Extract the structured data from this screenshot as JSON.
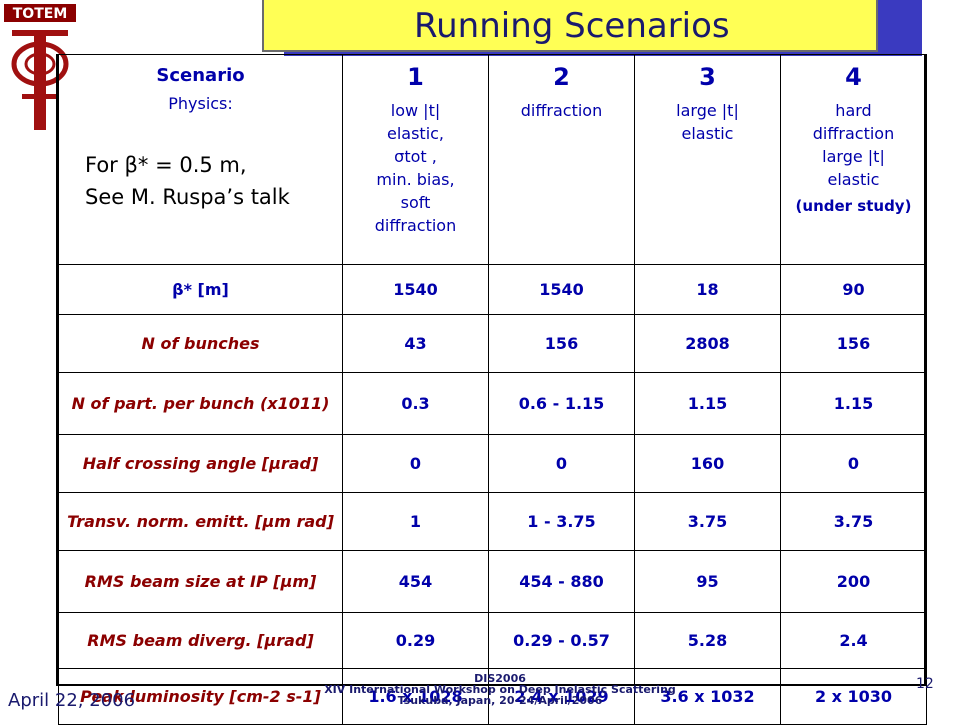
{
  "slide": {
    "title": "Running Scenarios",
    "logo_text": "TOTEM",
    "footer_date": "April 22, 2006",
    "footer_conf": [
      "DIS2006",
      "XIV International Workshop on Deep Inelastic Scattering",
      "Tsukuba, Japan, 20-24/April/2006"
    ],
    "page_number": "12"
  },
  "header": {
    "scenario_label": "Scenario",
    "physics_label": "Physics:",
    "note_line1": "For β* = 0.5 m,",
    "note_line2": "See M. Ruspa’s talk",
    "columns": [
      {
        "num": "1",
        "lines": [
          "low |t|",
          "elastic,",
          "σtot ,",
          "min. bias,",
          "soft",
          "diffraction"
        ],
        "note": ""
      },
      {
        "num": "2",
        "lines": [
          "diffraction"
        ],
        "note": ""
      },
      {
        "num": "3",
        "lines": [
          "large |t|",
          "elastic"
        ],
        "note": ""
      },
      {
        "num": "4",
        "lines": [
          "hard",
          "diffraction",
          "large |t|",
          "elastic"
        ],
        "note": "(under study)"
      }
    ]
  },
  "rows": [
    {
      "label": "β* [m]",
      "values": [
        "1540",
        "1540",
        "18",
        "90"
      ]
    },
    {
      "label": "N of bunches",
      "values": [
        "43",
        "156",
        "2808",
        "156"
      ]
    },
    {
      "label": "N of part. per bunch (x1011)",
      "values": [
        "0.3",
        "0.6 - 1.15",
        "1.15",
        "1.15"
      ]
    },
    {
      "label": "Half crossing angle [μrad]",
      "values": [
        "0",
        "0",
        "160",
        "0"
      ]
    },
    {
      "label": "Transv. norm. emitt. [μm rad]",
      "values": [
        "1",
        "1 - 3.75",
        "3.75",
        "3.75"
      ]
    },
    {
      "label": "RMS beam size at IP [μm]",
      "values": [
        "454",
        "454 - 880",
        "95",
        "200"
      ]
    },
    {
      "label": "RMS beam diverg. [μrad]",
      "values": [
        "0.29",
        "0.29 - 0.57",
        "5.28",
        "2.4"
      ]
    },
    {
      "label": "Peak luminosity [cm-2 s-1]",
      "values": [
        "1.6 x 1028",
        "2.4 x 1029",
        "3.6 x 1032",
        "2 x 1030"
      ]
    }
  ]
}
